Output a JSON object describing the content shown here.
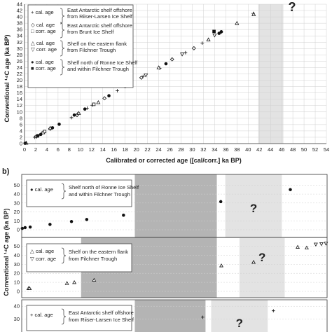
{
  "top_chart": {
    "shaded_mark": "?",
    "legend": [
      {
        "items": [
          "+ cal. age"
        ],
        "label_lines": [
          "East Antarctic shelf offshore",
          "from Riiser-Larsen Ice Shelf"
        ]
      },
      {
        "items": [
          "◇ cal. age",
          "□ corr. age"
        ],
        "label_lines": [
          "East Antarctic shelf offshore",
          "from Brunt Ice Shelf"
        ]
      },
      {
        "items": [
          "△ cal. age",
          "▽ corr. age"
        ],
        "label_lines": [
          "Shelf on the eastern flank",
          "from Filchner Trough"
        ]
      },
      {
        "items": [
          "● cal. age",
          "■ corr. age"
        ],
        "label_lines": [
          "Shelf north of Ronne Ice Shelf",
          "and within Filchner Trough"
        ]
      }
    ]
  },
  "panel_b": {
    "label": "b)",
    "y_axis_title": "Conventional ¹⁴C age (ka BP)",
    "shaded_mark": "?",
    "sub1": {
      "items": [
        "● cal. age"
      ],
      "label_lines": [
        "Shelf north of Ronne Ice Shelf",
        "and within Filchner Trough"
      ]
    },
    "sub2": {
      "items": [
        "△ cal. age",
        "▽ corr. age"
      ],
      "label_lines": [
        "Shelf on the eastern flank",
        "from Filchner Trough"
      ]
    },
    "sub3": {
      "items": [
        "+ cal. age"
      ],
      "label_lines": [
        "East Antarctic shelf offshore",
        "from Riiser-Larsen Ice Shelf"
      ]
    }
  },
  "chart_data": [
    {
      "type": "scatter",
      "xlabel": "Calibrated or corrected age ([cal/corr.] ka BP)",
      "ylabel": "Conventional ¹⁴C age (ka BP)",
      "xlim": [
        0,
        54
      ],
      "ylim": [
        0,
        44
      ],
      "x_ticks": [
        0,
        2,
        4,
        6,
        8,
        10,
        12,
        14,
        16,
        18,
        20,
        22,
        24,
        26,
        28,
        30,
        32,
        34,
        36,
        38,
        40,
        42,
        44,
        46,
        48,
        50,
        52,
        54
      ],
      "y_ticks": [
        0,
        2,
        4,
        6,
        8,
        10,
        12,
        14,
        16,
        18,
        20,
        22,
        24,
        26,
        28,
        30,
        32,
        34,
        36,
        38,
        40,
        42,
        44
      ],
      "grid": true,
      "shaded_x_range": [
        41.8,
        46.3
      ],
      "series": [
        {
          "name": "cal. age (Riiser-Larsen)",
          "marker": "plus",
          "points": [
            [
              1.8,
              2.0
            ],
            [
              3.1,
              3.3
            ],
            [
              8.4,
              8.2
            ],
            [
              9.5,
              9.4
            ],
            [
              11.2,
              11.2
            ],
            [
              12.1,
              12.1
            ],
            [
              16.6,
              16.7
            ],
            [
              21.2,
              21.2
            ],
            [
              24.2,
              23.8
            ],
            [
              28.8,
              28.7
            ],
            [
              31.8,
              31.7
            ],
            [
              35.2,
              35.2
            ],
            [
              40.9,
              41.1
            ]
          ]
        },
        {
          "name": "cal. age (Brunt)",
          "marker": "diamond",
          "points": [
            [
              2.1,
              2.2
            ],
            [
              4.6,
              4.7
            ],
            [
              9.4,
              9.0
            ],
            [
              14.3,
              14.3
            ],
            [
              20.9,
              20.8
            ],
            [
              26.4,
              26.6
            ],
            [
              30.3,
              30.1
            ]
          ]
        },
        {
          "name": "corr. age (Brunt)",
          "marker": "square",
          "points": [
            [
              2.3,
              2.4
            ],
            [
              3.6,
              3.8
            ],
            [
              12.4,
              12.4
            ]
          ]
        },
        {
          "name": "cal. age (Filchner east)",
          "marker": "triangle-up",
          "points": [
            [
              0.3,
              0.2
            ],
            [
              3.3,
              3.5
            ],
            [
              4.6,
              4.9
            ],
            [
              9.7,
              9.6
            ],
            [
              13.2,
              13.0
            ],
            [
              24.0,
              24.0
            ],
            [
              32.9,
              32.8
            ],
            [
              38.0,
              38.0
            ],
            [
              41.0,
              40.8
            ]
          ]
        },
        {
          "name": "corr. age (Filchner east)",
          "marker": "triangle-down",
          "points": [
            [
              21.7,
              21.6
            ],
            [
              28.2,
              28.2
            ],
            [
              34.0,
              34.2
            ]
          ]
        },
        {
          "name": "cal. age (Ronne/Filchner)",
          "marker": "circle",
          "points": [
            [
              0.1,
              0.1
            ],
            [
              2.4,
              2.5
            ],
            [
              2.9,
              2.9
            ],
            [
              5.0,
              5.0
            ],
            [
              6.2,
              6.1
            ],
            [
              8.9,
              9.0
            ],
            [
              10.8,
              10.9
            ],
            [
              15.1,
              15.1
            ],
            [
              18.0,
              18.0
            ],
            [
              25.3,
              25.2
            ],
            [
              34.8,
              34.8
            ],
            [
              35.2,
              35.3
            ]
          ]
        },
        {
          "name": "corr. age (Ronne/Filchner)",
          "marker": "square-filled",
          "points": [
            [
              33.9,
              35.4
            ]
          ]
        }
      ]
    },
    {
      "type": "scatter",
      "panel": "b-1",
      "ylim": [
        0,
        55
      ],
      "y_ticks": [
        0,
        10,
        20,
        30,
        40,
        50
      ],
      "shaded_ranges": [
        {
          "x": [
            20.0,
            34.5
          ],
          "shade": "dark"
        },
        {
          "x": [
            36.0,
            46.0
          ],
          "shade": "light"
        }
      ],
      "series": [
        {
          "name": "cal. age",
          "marker": "circle",
          "points": [
            [
              0.1,
              1.5
            ],
            [
              0.6,
              2.4
            ],
            [
              1.5,
              3.0
            ],
            [
              5.0,
              6.0
            ],
            [
              8.8,
              9.2
            ],
            [
              11.5,
              11.5
            ],
            [
              18.0,
              16.3
            ],
            [
              35.2,
              31.5
            ],
            [
              47.5,
              45.0
            ]
          ]
        }
      ]
    },
    {
      "type": "scatter",
      "panel": "b-2",
      "ylim": [
        0,
        55
      ],
      "y_ticks": [
        0,
        10,
        20,
        30,
        40,
        50
      ],
      "shaded_ranges": [
        {
          "x": [
            10.5,
            34.5
          ],
          "shade": "dark"
        },
        {
          "x": [
            38.5,
            46.5
          ],
          "shade": "light"
        }
      ],
      "series": [
        {
          "name": "cal. age",
          "marker": "triangle-up",
          "points": [
            [
              1.2,
              3.3
            ],
            [
              1.4,
              3.3
            ],
            [
              8.0,
              9.0
            ],
            [
              9.3,
              10.0
            ],
            [
              12.8,
              12.5
            ],
            [
              35.3,
              28.5
            ],
            [
              41.0,
              32.3
            ],
            [
              48.8,
              49.0
            ],
            [
              50.4,
              48.2
            ]
          ]
        },
        {
          "name": "corr. age",
          "marker": "triangle-down",
          "points": [
            [
              52.0,
              52.0
            ],
            [
              53.0,
              52.5
            ],
            [
              53.8,
              53.0
            ]
          ]
        }
      ]
    },
    {
      "type": "scatter",
      "panel": "b-3",
      "ylim": [
        0,
        45
      ],
      "y_ticks": [
        30,
        40
      ],
      "shaded_ranges": [
        {
          "x": [
            20.0,
            32.5
          ],
          "shade": "dark"
        },
        {
          "x": [
            33.5,
            43.5
          ],
          "shade": "light"
        }
      ],
      "series": [
        {
          "name": "cal. age",
          "marker": "plus",
          "points": [
            [
              32.0,
              31.5
            ],
            [
              44.5,
              36.5
            ]
          ]
        }
      ]
    }
  ]
}
